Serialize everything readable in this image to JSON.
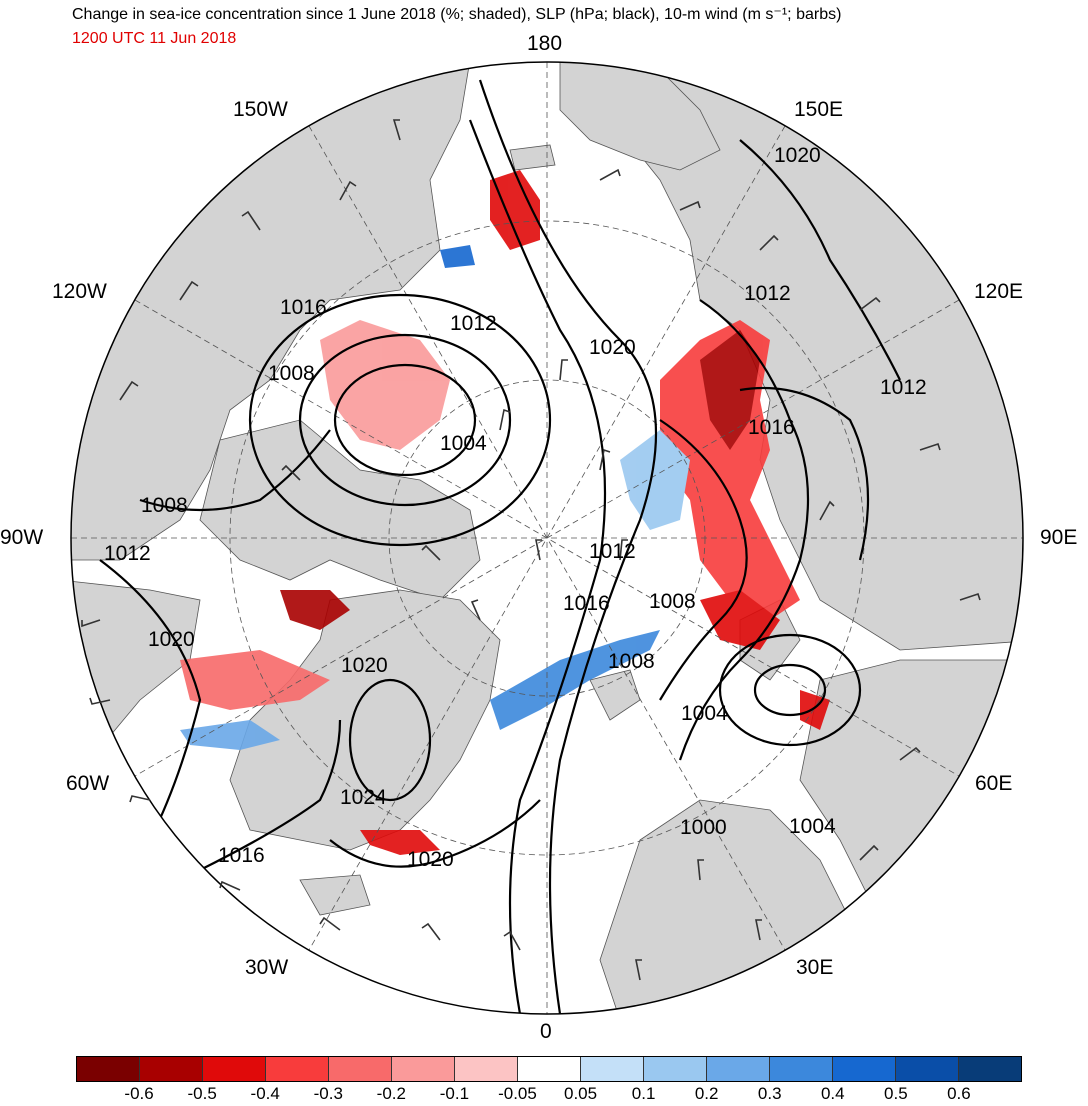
{
  "header": {
    "title": "Change in sea-ice concentration since 1 June 2018 (%; shaded), SLP (hPa; black), 10-m wind (m s⁻¹; barbs)",
    "time": "1200 UTC 11 Jun 2018"
  },
  "longitude_labels": {
    "north": "180",
    "south": "0",
    "w150": "150W",
    "e150": "150E",
    "w120": "120W",
    "e120": "120E",
    "w90": "90W",
    "e90": "90E",
    "w60": "60W",
    "e60": "60E",
    "w30": "30W",
    "e30": "30E"
  },
  "isobar_labels": [
    "1020",
    "1012",
    "1016",
    "1012",
    "1020",
    "1012",
    "1008",
    "1016",
    "1004",
    "1008",
    "1012",
    "1012",
    "1016",
    "1008",
    "1020",
    "1008",
    "1020",
    "1004",
    "1024",
    "1000",
    "1004",
    "1016",
    "1020"
  ],
  "colorbar": {
    "colors": [
      "#7a0000",
      "#a80000",
      "#e00a0a",
      "#f83c3c",
      "#f86a6a",
      "#fa9a9a",
      "#fcc4c4",
      "#ffffff",
      "#c4e0f8",
      "#9ac8f0",
      "#6aa8e8",
      "#3c88dc",
      "#1668d0",
      "#0a4ea8",
      "#083c78"
    ],
    "tick_labels": [
      "-0.6",
      "-0.5",
      "-0.4",
      "-0.3",
      "-0.2",
      "-0.1",
      "-0.05",
      "0.05",
      "0.1",
      "0.2",
      "0.3",
      "0.4",
      "0.5",
      "0.6"
    ]
  },
  "style": {
    "land_color": "#d3d3d3",
    "ocean_color": "#ffffff",
    "title_color": "#000000",
    "time_color": "#e00000",
    "isobar_color": "#000000"
  }
}
